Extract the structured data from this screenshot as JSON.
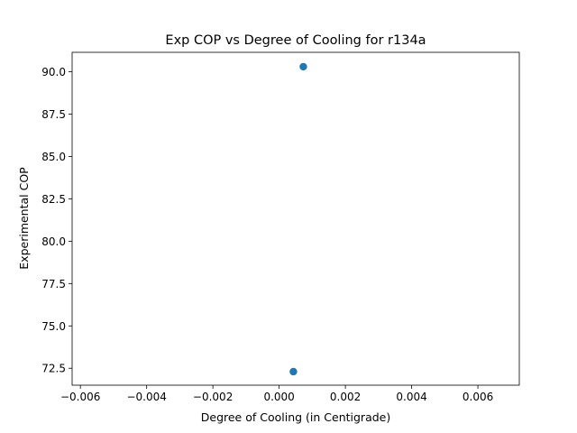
{
  "chart_data": {
    "type": "scatter",
    "title": "Exp COP vs Degree of Cooling for r134a",
    "xlabel": "Degree of Cooling (in Centigrade)",
    "ylabel": "Experimental COP",
    "xlim": [
      -0.00625,
      0.00725
    ],
    "ylim": [
      71.5,
      91.15
    ],
    "x_ticks": [
      -0.006,
      -0.004,
      -0.002,
      0.0,
      0.002,
      0.004,
      0.006
    ],
    "x_tick_labels": [
      "−0.006",
      "−0.004",
      "−0.002",
      "0.000",
      "0.002",
      "0.004",
      "0.006"
    ],
    "y_ticks": [
      72.5,
      75.0,
      77.5,
      80.0,
      82.5,
      85.0,
      87.5,
      90.0
    ],
    "y_tick_labels": [
      "72.5",
      "75.0",
      "77.5",
      "80.0",
      "82.5",
      "85.0",
      "87.5",
      "90.0"
    ],
    "grid": false,
    "series": [
      {
        "color": "#1f77b4",
        "points": [
          {
            "x": 0.00073,
            "y": 90.3
          },
          {
            "x": 0.00043,
            "y": 72.3
          }
        ]
      }
    ]
  }
}
